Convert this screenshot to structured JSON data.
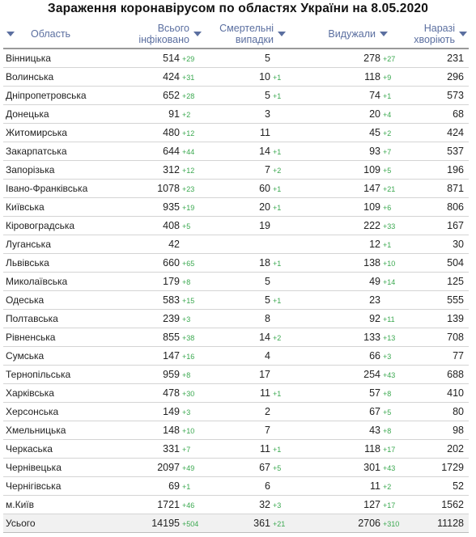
{
  "title": "Зараження коронавірусом по областях України на 8.05.2020",
  "headers": {
    "region": "Область",
    "infected_line1": "Всього",
    "infected_line2": "інфіковано",
    "deaths_line1": "Смертельні",
    "deaths_line2": "випадки",
    "recovered": "Видужали",
    "active_line1": "Наразі",
    "active_line2": "хворіють"
  },
  "rows": [
    {
      "region": "Вінницька",
      "infected": "514",
      "infected_inc": "+29",
      "deaths": "5",
      "deaths_inc": "",
      "recovered": "278",
      "recovered_inc": "+27",
      "active": "231"
    },
    {
      "region": "Волинська",
      "infected": "424",
      "infected_inc": "+31",
      "deaths": "10",
      "deaths_inc": "+1",
      "recovered": "118",
      "recovered_inc": "+9",
      "active": "296"
    },
    {
      "region": "Дніпропетровська",
      "infected": "652",
      "infected_inc": "+28",
      "deaths": "5",
      "deaths_inc": "+1",
      "recovered": "74",
      "recovered_inc": "+1",
      "active": "573"
    },
    {
      "region": "Донецька",
      "infected": "91",
      "infected_inc": "+2",
      "deaths": "3",
      "deaths_inc": "",
      "recovered": "20",
      "recovered_inc": "+4",
      "active": "68"
    },
    {
      "region": "Житомирська",
      "infected": "480",
      "infected_inc": "+12",
      "deaths": "11",
      "deaths_inc": "",
      "recovered": "45",
      "recovered_inc": "+2",
      "active": "424"
    },
    {
      "region": "Закарпатська",
      "infected": "644",
      "infected_inc": "+44",
      "deaths": "14",
      "deaths_inc": "+1",
      "recovered": "93",
      "recovered_inc": "+7",
      "active": "537"
    },
    {
      "region": "Запорізька",
      "infected": "312",
      "infected_inc": "+12",
      "deaths": "7",
      "deaths_inc": "+2",
      "recovered": "109",
      "recovered_inc": "+5",
      "active": "196"
    },
    {
      "region": "Івано-Франківська",
      "infected": "1078",
      "infected_inc": "+23",
      "deaths": "60",
      "deaths_inc": "+1",
      "recovered": "147",
      "recovered_inc": "+21",
      "active": "871"
    },
    {
      "region": "Київська",
      "infected": "935",
      "infected_inc": "+19",
      "deaths": "20",
      "deaths_inc": "+1",
      "recovered": "109",
      "recovered_inc": "+6",
      "active": "806"
    },
    {
      "region": "Кіровоградська",
      "infected": "408",
      "infected_inc": "+5",
      "deaths": "19",
      "deaths_inc": "",
      "recovered": "222",
      "recovered_inc": "+33",
      "active": "167"
    },
    {
      "region": "Луганська",
      "infected": "42",
      "infected_inc": "",
      "deaths": "",
      "deaths_inc": "",
      "recovered": "12",
      "recovered_inc": "+1",
      "active": "30"
    },
    {
      "region": "Львівська",
      "infected": "660",
      "infected_inc": "+65",
      "deaths": "18",
      "deaths_inc": "+1",
      "recovered": "138",
      "recovered_inc": "+10",
      "active": "504"
    },
    {
      "region": "Миколаївська",
      "infected": "179",
      "infected_inc": "+8",
      "deaths": "5",
      "deaths_inc": "",
      "recovered": "49",
      "recovered_inc": "+14",
      "active": "125"
    },
    {
      "region": "Одеська",
      "infected": "583",
      "infected_inc": "+15",
      "deaths": "5",
      "deaths_inc": "+1",
      "recovered": "23",
      "recovered_inc": "",
      "active": "555"
    },
    {
      "region": "Полтавська",
      "infected": "239",
      "infected_inc": "+3",
      "deaths": "8",
      "deaths_inc": "",
      "recovered": "92",
      "recovered_inc": "+11",
      "active": "139"
    },
    {
      "region": "Рівненська",
      "infected": "855",
      "infected_inc": "+38",
      "deaths": "14",
      "deaths_inc": "+2",
      "recovered": "133",
      "recovered_inc": "+13",
      "active": "708"
    },
    {
      "region": "Сумська",
      "infected": "147",
      "infected_inc": "+16",
      "deaths": "4",
      "deaths_inc": "",
      "recovered": "66",
      "recovered_inc": "+3",
      "active": "77"
    },
    {
      "region": "Тернопільська",
      "infected": "959",
      "infected_inc": "+8",
      "deaths": "17",
      "deaths_inc": "",
      "recovered": "254",
      "recovered_inc": "+43",
      "active": "688"
    },
    {
      "region": "Харківська",
      "infected": "478",
      "infected_inc": "+30",
      "deaths": "11",
      "deaths_inc": "+1",
      "recovered": "57",
      "recovered_inc": "+8",
      "active": "410"
    },
    {
      "region": "Херсонська",
      "infected": "149",
      "infected_inc": "+3",
      "deaths": "2",
      "deaths_inc": "",
      "recovered": "67",
      "recovered_inc": "+5",
      "active": "80"
    },
    {
      "region": "Хмельницька",
      "infected": "148",
      "infected_inc": "+10",
      "deaths": "7",
      "deaths_inc": "",
      "recovered": "43",
      "recovered_inc": "+8",
      "active": "98"
    },
    {
      "region": "Черкаська",
      "infected": "331",
      "infected_inc": "+7",
      "deaths": "11",
      "deaths_inc": "+1",
      "recovered": "118",
      "recovered_inc": "+17",
      "active": "202"
    },
    {
      "region": "Чернівецька",
      "infected": "2097",
      "infected_inc": "+49",
      "deaths": "67",
      "deaths_inc": "+5",
      "recovered": "301",
      "recovered_inc": "+43",
      "active": "1729"
    },
    {
      "region": "Чернігівська",
      "infected": "69",
      "infected_inc": "+1",
      "deaths": "6",
      "deaths_inc": "",
      "recovered": "11",
      "recovered_inc": "+2",
      "active": "52"
    },
    {
      "region": "м.Київ",
      "infected": "1721",
      "infected_inc": "+46",
      "deaths": "32",
      "deaths_inc": "+3",
      "recovered": "127",
      "recovered_inc": "+17",
      "active": "1562"
    },
    {
      "region": "Усього",
      "infected": "14195",
      "infected_inc": "+504",
      "deaths": "361",
      "deaths_inc": "+21",
      "recovered": "2706",
      "recovered_inc": "+310",
      "active": "11128",
      "is_total": true
    }
  ],
  "colors": {
    "header_text": "#5b6fa0",
    "increment": "#3aa84f",
    "total_row_bg": "#f1f1f1"
  },
  "icons": {
    "sort": "sort-arrow-down-icon"
  }
}
